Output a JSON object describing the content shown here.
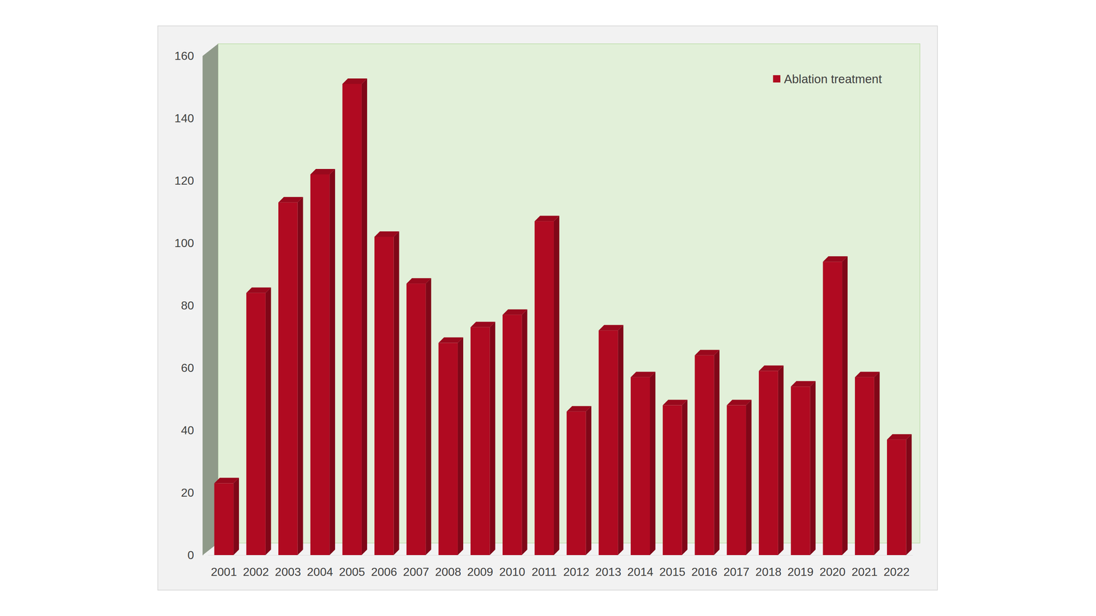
{
  "chart_data": {
    "type": "bar",
    "categories": [
      "2001",
      "2002",
      "2003",
      "2004",
      "2005",
      "2006",
      "2007",
      "2008",
      "2009",
      "2010",
      "2011",
      "2012",
      "2013",
      "2014",
      "2015",
      "2016",
      "2017",
      "2018",
      "2019",
      "2020",
      "2021",
      "2022"
    ],
    "series": [
      {
        "name": "Ablation treatment",
        "color": "#b00a21",
        "values": [
          23,
          84,
          113,
          122,
          151,
          102,
          87,
          68,
          73,
          77,
          107,
          46,
          72,
          57,
          48,
          64,
          48,
          59,
          54,
          94,
          57,
          37
        ]
      }
    ],
    "ylim": [
      0,
      160
    ],
    "yticks": [
      0,
      20,
      40,
      60,
      80,
      100,
      120,
      140,
      160
    ],
    "legend": "top-right"
  }
}
